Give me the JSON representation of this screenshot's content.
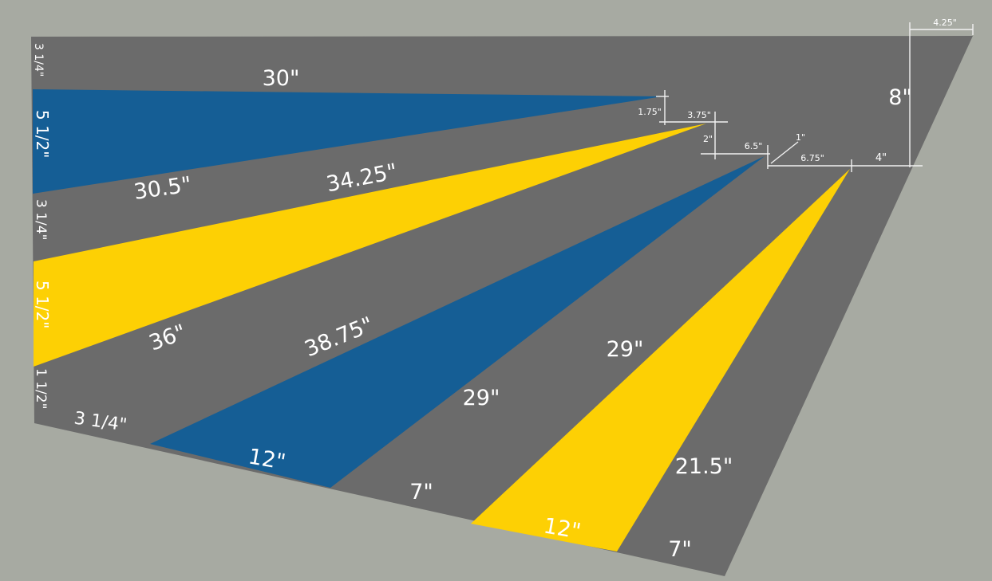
{
  "colors": {
    "background": "#a7aaa2",
    "panel": "#6b6b6b",
    "blue": "#155e95",
    "yellow": "#fdd004",
    "text": "#ffffff"
  },
  "shapes": [
    {
      "name": "panel",
      "color": "gray"
    },
    {
      "name": "blue-stripe-top",
      "color": "blue"
    },
    {
      "name": "yellow-stripe-upper",
      "color": "yellow"
    },
    {
      "name": "blue-stripe-lower",
      "color": "blue"
    },
    {
      "name": "yellow-stripe-right",
      "color": "yellow"
    }
  ],
  "labels": {
    "top_stripe_length": "30\"",
    "gray_band_length": "30.5\"",
    "yellow_top_length": "34.25\"",
    "yellow_bottom_length": "36\"",
    "blue_top_length": "38.75\"",
    "blue_bottom_length": "29\"",
    "yellow2_top_length": "29\"",
    "right_gray_length": "21.5\"",
    "right_height": "8\"",
    "bottom_blue_width": "12\"",
    "bottom_gray_width_a": "7\"",
    "bottom_yellow_width": "12\"",
    "bottom_gray_width_b": "7\"",
    "bottom_left_width": "3 1/4\"",
    "left_top_gap": "3 1/4\"",
    "left_blue_width": "5 1/2\"",
    "left_gray_width": "3 1/4\"",
    "left_yellow_width": "5 1/2\"",
    "left_bottom_gap": "1 1/2\"",
    "dim_top_corner": "4.25\"",
    "dim_a": "1.75\"",
    "dim_b": "3.75\"",
    "dim_c": "2\"",
    "dim_d": "6.5\"",
    "dim_e": "1\"",
    "dim_f": "6.75\"",
    "dim_g": "4\""
  }
}
